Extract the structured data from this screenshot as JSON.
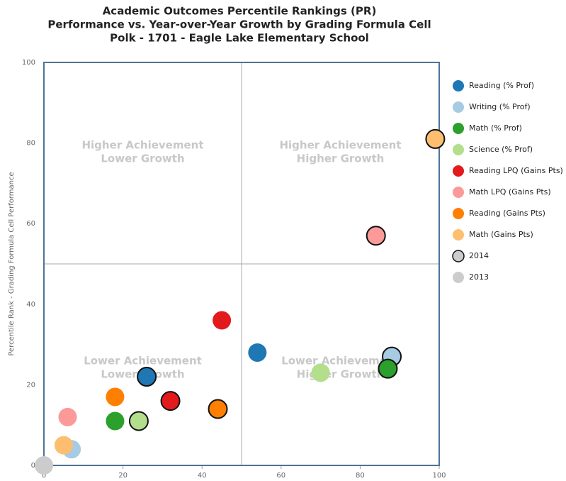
{
  "chart_data": {
    "type": "scatter",
    "title": [
      "Academic Outcomes Percentile Rankings (PR)",
      "Performance vs. Year-over-Year Growth by Grading Formula Cell",
      "Polk - 1701 - Eagle Lake Elementary School"
    ],
    "y_label": "Percentile Rank - Grading Formula Cell Performance",
    "xlim": [
      0,
      100
    ],
    "ylim": [
      0,
      100
    ],
    "xticks": [
      0,
      20,
      40,
      60,
      80,
      100
    ],
    "yticks": [
      0,
      20,
      40,
      60,
      80,
      100
    ],
    "divider": {
      "x": 50,
      "y": 50
    },
    "quadrants": [
      {
        "lines": [
          "Higher Achievement",
          "Lower Growth"
        ],
        "corner": "top-left"
      },
      {
        "lines": [
          "Higher Achievement",
          "Higher Growth"
        ],
        "corner": "top-right"
      },
      {
        "lines": [
          "Lower Achievement",
          "Lower Growth"
        ],
        "corner": "bottom-left"
      },
      {
        "lines": [
          "Lower Achievement",
          "Higher Growth"
        ],
        "corner": "bottom-right"
      }
    ],
    "series": [
      {
        "name": "Reading (% Prof)",
        "color": "#1f77b4",
        "x": [
          26,
          54
        ],
        "y": [
          22,
          28
        ]
      },
      {
        "name": "Writing (% Prof)",
        "color": "#a6cbe3",
        "x": [
          88,
          7
        ],
        "y": [
          27,
          4
        ]
      },
      {
        "name": "Math (% Prof)",
        "color": "#2ca02c",
        "x": [
          87,
          18
        ],
        "y": [
          24,
          11
        ]
      },
      {
        "name": "Science (% Prof)",
        "color": "#b3de8c",
        "x": [
          24,
          70
        ],
        "y": [
          11,
          23
        ]
      },
      {
        "name": "Reading LPQ (Gains Pts)",
        "color": "#e31a1c",
        "x": [
          32,
          45
        ],
        "y": [
          16,
          36
        ]
      },
      {
        "name": "Math LPQ (Gains Pts)",
        "color": "#fb9a99",
        "x": [
          84,
          6
        ],
        "y": [
          57,
          12
        ]
      },
      {
        "name": "Reading (Gains Pts)",
        "color": "#ff7f00",
        "x": [
          44,
          18
        ],
        "y": [
          14,
          17
        ]
      },
      {
        "name": "Math (Gains Pts)",
        "color": "#fdbf6f",
        "x": [
          99,
          5
        ],
        "y": [
          81,
          5
        ]
      }
    ],
    "years": [
      {
        "name": "2014",
        "color": "#cccccc",
        "x": [],
        "y": []
      },
      {
        "name": "2013",
        "color": "#cccccc",
        "x": [
          0
        ],
        "y": [
          0
        ]
      }
    ]
  }
}
